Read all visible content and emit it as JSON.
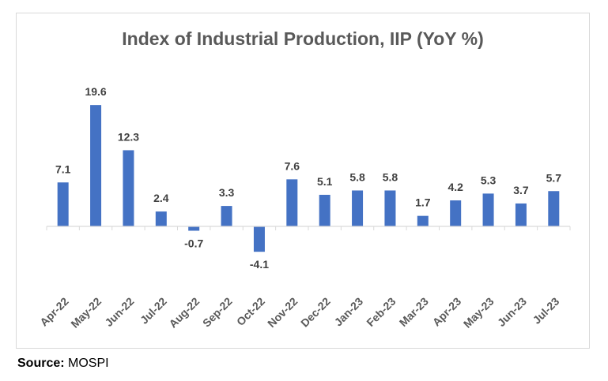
{
  "chart_data": {
    "type": "bar",
    "title": "Index of Industrial Production, IIP (YoY %)",
    "xlabel": "",
    "ylabel": "",
    "categories": [
      "Apr-22",
      "May-22",
      "Jun-22",
      "Jul-22",
      "Aug-22",
      "Sep-22",
      "Oct-22",
      "Nov-22",
      "Dec-22",
      "Jan-23",
      "Feb-23",
      "Mar-23",
      "Apr-23",
      "May-23",
      "Jun-23",
      "Jul-23"
    ],
    "values": [
      7.1,
      19.6,
      12.3,
      2.4,
      -0.7,
      3.3,
      -4.1,
      7.6,
      5.1,
      5.8,
      5.8,
      1.7,
      4.2,
      5.3,
      3.7,
      5.7
    ],
    "data_labels": [
      "7.1",
      "19.6",
      "12.3",
      "2.4",
      "-0.7",
      "3.3",
      "-4.1",
      "7.6",
      "5.1",
      "5.8",
      "5.8",
      "1.7",
      "4.2",
      "5.3",
      "3.7",
      "5.7"
    ],
    "ylim": [
      -8,
      20
    ],
    "grid": false,
    "legend": "none",
    "bar_color": "#4472c4",
    "axis_color": "#d9d9d9"
  },
  "source": {
    "label": "Source:",
    "value": "MOSPI"
  }
}
